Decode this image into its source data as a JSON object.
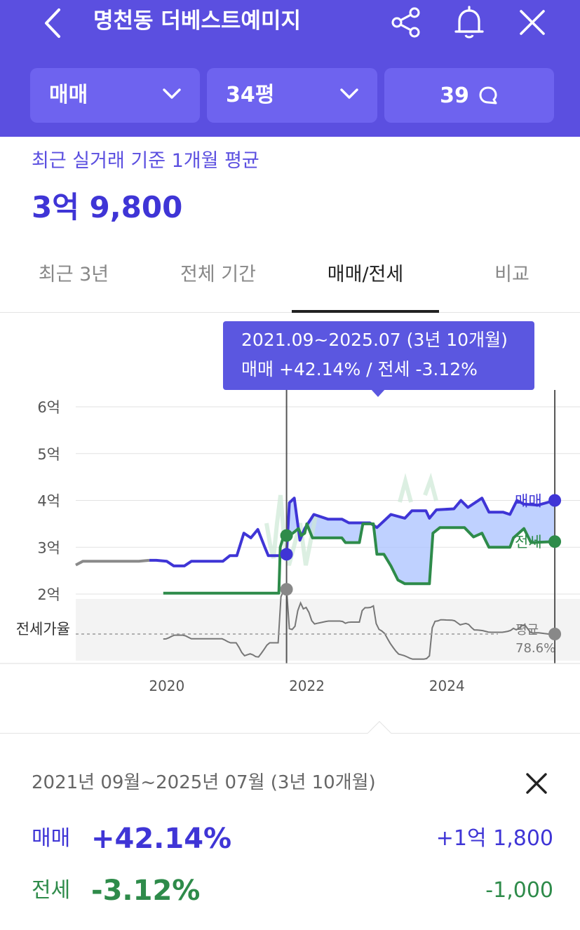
{
  "header": {
    "title": "명천동 더베스트예미지",
    "colors": {
      "background": "#5b4fe0",
      "chip": "#6e63ef"
    },
    "icons": [
      "chevron-left-icon",
      "share-icon",
      "bell-icon",
      "close-icon"
    ]
  },
  "filters": {
    "deal_type": "매매",
    "size": "34평",
    "comments_count": "39"
  },
  "summary": {
    "label": "최근 실거래 기준 1개월 평균",
    "value": "3억 9,800"
  },
  "tabs": [
    {
      "label": "최근 3년",
      "active": false
    },
    {
      "label": "전체 기간",
      "active": false
    },
    {
      "label": "매매/전세",
      "active": true
    },
    {
      "label": "비교",
      "active": false
    }
  ],
  "tooltip": {
    "range": "2021.09~2025.07 (3년 10개월)",
    "change": "매매 +42.14%  /  전세 -3.12%"
  },
  "chart_data": {
    "type": "line",
    "y_tick_labels": [
      "6억",
      "5억",
      "4억",
      "3억",
      "2억"
    ],
    "y_ticks": [
      6,
      5,
      4,
      3,
      2
    ],
    "ylim": [
      1.4,
      6.4
    ],
    "x_tick_labels": [
      "2020",
      "2022",
      "2024"
    ],
    "xlim": [
      2018.7,
      2025.9
    ],
    "selection": {
      "start": 2021.71,
      "end": 2025.54
    },
    "ratio_label": "전세가율",
    "ratio_avg_label": "평균",
    "ratio_avg_value": "78.6%",
    "colors": {
      "trade": "#3f35d6",
      "rent": "#2e8b4a",
      "ratio": "#777777",
      "fill": "#a9c2ff"
    },
    "series": [
      {
        "name": "매매",
        "points": [
          [
            2018.7,
            2.62
          ],
          [
            2018.8,
            2.7
          ],
          [
            2019.0,
            2.7
          ],
          [
            2019.2,
            2.7
          ],
          [
            2019.4,
            2.7
          ],
          [
            2019.5,
            2.7
          ],
          [
            2019.6,
            2.7
          ],
          [
            2019.75,
            2.72
          ],
          [
            2019.85,
            2.72
          ],
          [
            2020.0,
            2.7
          ],
          [
            2020.1,
            2.6
          ],
          [
            2020.25,
            2.6
          ],
          [
            2020.35,
            2.7
          ],
          [
            2020.6,
            2.7
          ],
          [
            2020.8,
            2.7
          ],
          [
            2020.9,
            2.82
          ],
          [
            2021.0,
            2.82
          ],
          [
            2021.1,
            3.3
          ],
          [
            2021.2,
            3.2
          ],
          [
            2021.3,
            3.38
          ],
          [
            2021.4,
            3.0
          ],
          [
            2021.45,
            2.82
          ],
          [
            2021.65,
            2.82
          ],
          [
            2021.71,
            2.85
          ],
          [
            2021.75,
            3.95
          ],
          [
            2021.82,
            4.05
          ],
          [
            2021.9,
            3.15
          ],
          [
            2021.97,
            3.4
          ],
          [
            2022.1,
            3.7
          ],
          [
            2022.3,
            3.6
          ],
          [
            2022.5,
            3.6
          ],
          [
            2022.6,
            3.52
          ],
          [
            2022.9,
            3.52
          ],
          [
            2023.0,
            3.42
          ],
          [
            2023.2,
            3.7
          ],
          [
            2023.4,
            3.62
          ],
          [
            2023.5,
            3.78
          ],
          [
            2023.7,
            3.78
          ],
          [
            2023.75,
            3.62
          ],
          [
            2023.85,
            3.8
          ],
          [
            2024.1,
            3.82
          ],
          [
            2024.2,
            4.0
          ],
          [
            2024.3,
            3.85
          ],
          [
            2024.5,
            4.05
          ],
          [
            2024.6,
            3.75
          ],
          [
            2024.8,
            3.75
          ],
          [
            2024.9,
            3.7
          ],
          [
            2025.0,
            4.0
          ],
          [
            2025.1,
            3.92
          ],
          [
            2025.3,
            3.9
          ],
          [
            2025.54,
            4.0
          ]
        ]
      },
      {
        "name": "전세",
        "points": [
          [
            2019.95,
            2.02
          ],
          [
            2020.4,
            2.02
          ],
          [
            2020.8,
            2.02
          ],
          [
            2021.2,
            2.02
          ],
          [
            2021.6,
            2.02
          ],
          [
            2021.62,
            3.0
          ],
          [
            2021.66,
            3.2
          ],
          [
            2021.71,
            3.25
          ],
          [
            2021.8,
            3.3
          ],
          [
            2021.88,
            3.4
          ],
          [
            2021.92,
            3.25
          ],
          [
            2021.97,
            3.3
          ],
          [
            2022.0,
            3.5
          ],
          [
            2022.08,
            3.2
          ],
          [
            2022.5,
            3.2
          ],
          [
            2022.55,
            3.1
          ],
          [
            2022.75,
            3.1
          ],
          [
            2022.8,
            3.5
          ],
          [
            2022.95,
            3.5
          ],
          [
            2023.0,
            2.85
          ],
          [
            2023.1,
            2.85
          ],
          [
            2023.2,
            2.6
          ],
          [
            2023.3,
            2.3
          ],
          [
            2023.4,
            2.22
          ],
          [
            2023.6,
            2.22
          ],
          [
            2023.75,
            2.22
          ],
          [
            2023.8,
            3.3
          ],
          [
            2023.9,
            3.42
          ],
          [
            2024.25,
            3.42
          ],
          [
            2024.38,
            3.22
          ],
          [
            2024.5,
            3.3
          ],
          [
            2024.6,
            3.0
          ],
          [
            2024.9,
            3.0
          ],
          [
            2024.95,
            3.2
          ],
          [
            2025.1,
            3.4
          ],
          [
            2025.2,
            3.1
          ],
          [
            2025.54,
            3.12
          ]
        ]
      }
    ]
  },
  "detail": {
    "range": "2021년 09월~2025년 07월 (3년 10개월)",
    "trade": {
      "label": "매매",
      "pct": "+42.14%",
      "amount": "+1억 1,800"
    },
    "rent": {
      "label": "전세",
      "pct": "-3.12%",
      "amount": "-1,000"
    }
  }
}
